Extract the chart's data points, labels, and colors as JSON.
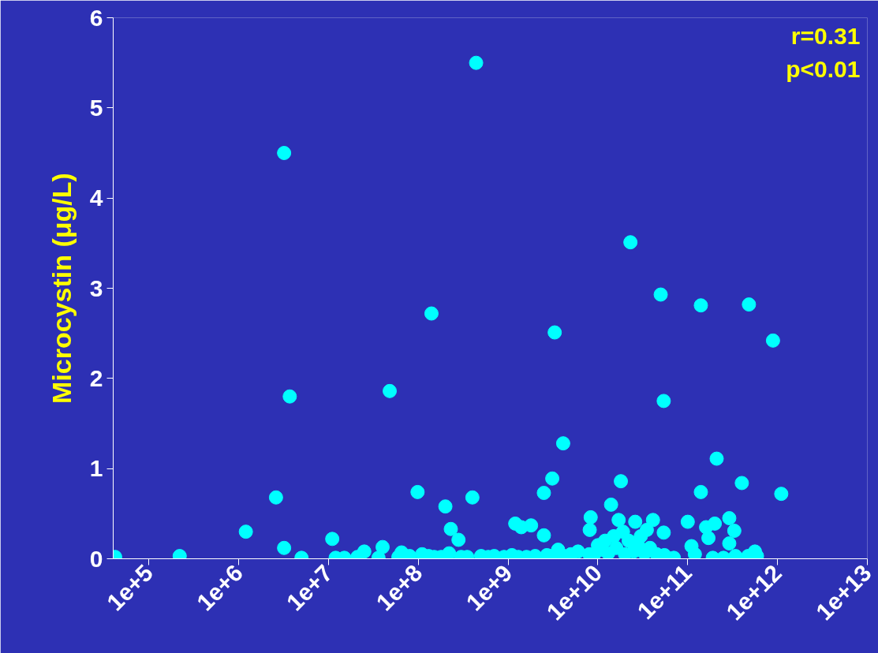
{
  "chart_data": {
    "type": "scatter",
    "ylabel": "Microcystin (μg/L)",
    "annotations": [
      "r=0.31",
      "p<0.01"
    ],
    "xlim": [
      40000,
      10000000000000
    ],
    "ylim": [
      0,
      6
    ],
    "xticks": [
      {
        "value": 100000,
        "label": "1e+5"
      },
      {
        "value": 1000000,
        "label": "1e+6"
      },
      {
        "value": 10000000,
        "label": "1e+7"
      },
      {
        "value": 100000000,
        "label": "1e+8"
      },
      {
        "value": 1000000000,
        "label": "1e+9"
      },
      {
        "value": 10000000000,
        "label": "1e+10"
      },
      {
        "value": 100000000000,
        "label": "1e+11"
      },
      {
        "value": 1000000000000,
        "label": "1e+12"
      },
      {
        "value": 10000000000000,
        "label": "1e+13"
      }
    ],
    "yticks": [
      0,
      1,
      2,
      3,
      4,
      5,
      6
    ],
    "log": "x",
    "grid": false,
    "marker": "circle",
    "series": [
      {
        "color": "#00ffff",
        "x": [
          42000.0,
          220000.0,
          1200000.0,
          2600000.0,
          3200000.0,
          3200000.0,
          3700000.0,
          5000000.0,
          11000000.0,
          48000000.0,
          98000000.0,
          140000000.0,
          200000000.0,
          230000000.0,
          280000000.0,
          400000000.0,
          440000000.0,
          1200000000.0,
          1400000000.0,
          1800000000.0,
          2500000000.0,
          2500000000.0,
          3100000000.0,
          3300000000.0,
          4100000000.0,
          8300000000.0,
          8100000000.0,
          14000000000.0,
          18000000000.0,
          17000000000.0,
          23000000000.0,
          26000000000.0,
          35000000000.0,
          41000000000.0,
          50000000000.0,
          54000000000.0,
          54000000000.0,
          100000000000.0,
          110000000000.0,
          140000000000.0,
          140000000000.0,
          160000000000.0,
          170000000000.0,
          200000000000.0,
          210000000000.0,
          290000000000.0,
          290000000000.0,
          330000000000.0,
          400000000000.0,
          480000000000.0,
          890000000000.0,
          1100000000000.0,
          560000000000.0,
          470000000000.0,
          590000000000.0,
          120000000000.0,
          190000000000.0,
          250000000000.0,
          340000000000.0,
          12000000.0,
          15000000.0,
          21000000.0,
          25000000.0,
          36000000.0,
          40000000.0,
          60000000.0,
          65000000.0,
          80000000.0,
          110000000.0,
          130000000.0,
          150000000.0,
          180000000.0,
          220000000.0,
          300000000.0,
          350000000.0,
          500000000.0,
          600000000.0,
          700000000.0,
          900000000.0,
          1100000000.0,
          1300000000.0,
          1600000000.0,
          2000000000.0,
          2700000000.0,
          3000000000.0,
          3600000000.0,
          4200000000.0,
          5000000000.0,
          6000000000.0,
          8000000000.0,
          9000000000.0,
          10000000000.0,
          11000000000.0,
          12000000000.0,
          13000000000.0,
          15000000000.0,
          16000000000.0,
          19000000000.0,
          20000000000.0,
          22000000000.0,
          25000000000.0,
          28000000000.0,
          30000000000.0,
          33000000000.0,
          38000000000.0,
          45000000000.0,
          55000000000.0,
          70000000000.0
        ],
        "values": [
          0.02,
          0.03,
          0.3,
          0.68,
          4.5,
          0.12,
          1.8,
          0.01,
          0.22,
          1.86,
          0.74,
          2.72,
          0.58,
          0.33,
          0.21,
          0.68,
          5.5,
          0.39,
          0.35,
          0.37,
          0.73,
          0.26,
          0.89,
          2.51,
          1.28,
          0.46,
          0.32,
          0.6,
          0.86,
          0.43,
          3.51,
          0.41,
          0.32,
          0.43,
          2.93,
          1.75,
          0.29,
          0.41,
          0.14,
          2.81,
          0.74,
          0.35,
          0.23,
          0.39,
          1.11,
          0.45,
          0.17,
          0.31,
          0.84,
          2.82,
          2.42,
          0.72,
          0.08,
          0.03,
          0.03,
          0.05,
          0.01,
          0.01,
          0.03,
          0.01,
          0.01,
          0.02,
          0.08,
          0.01,
          0.13,
          0.02,
          0.07,
          0.03,
          0.05,
          0.03,
          0.02,
          0.02,
          0.06,
          0.02,
          0.02,
          0.03,
          0.02,
          0.03,
          0.02,
          0.04,
          0.02,
          0.02,
          0.03,
          0.04,
          0.03,
          0.1,
          0.03,
          0.05,
          0.08,
          0.05,
          0.04,
          0.15,
          0.1,
          0.2,
          0.06,
          0.25,
          0.12,
          0.3,
          0.05,
          0.2,
          0.08,
          0.15,
          0.25,
          0.06,
          0.12,
          0.05,
          0.04,
          0.01
        ]
      }
    ]
  }
}
